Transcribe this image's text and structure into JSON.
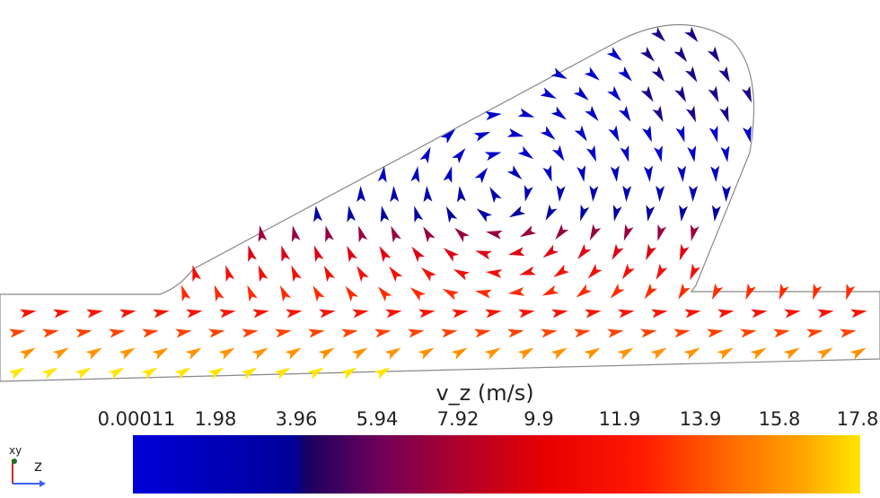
{
  "colorbar": {
    "title": "v_z (m/s)",
    "labels": [
      "0.00011",
      "1.98",
      "3.96",
      "5.94",
      "7.92",
      "9.9",
      "11.9",
      "13.9",
      "15.8",
      "17.8"
    ],
    "min": 0.00011,
    "max": 17.8,
    "colors": [
      "#0000d8",
      "#00009a",
      "#70005a",
      "#e80000",
      "#ff6a00",
      "#ffe600"
    ]
  },
  "axes": {
    "label": "z"
  }
}
